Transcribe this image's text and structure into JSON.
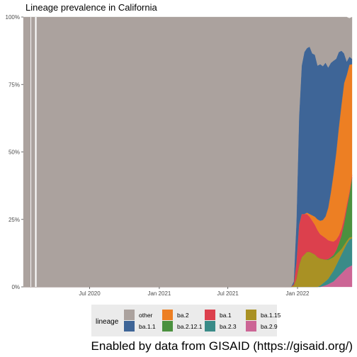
{
  "chart_data": {
    "type": "area",
    "title": "Lineage prevalence in California",
    "xlabel": "",
    "ylabel": "",
    "ylim": [
      0,
      1
    ],
    "xlim": [
      "2020-01-08",
      "2022-05-25"
    ],
    "y_ticks": [
      "0%",
      "25%",
      "50%",
      "75%",
      "100%"
    ],
    "y_tick_values": [
      0,
      0.25,
      0.5,
      0.75,
      1
    ],
    "x_ticks": [
      "Jul 2020",
      "Jan 2021",
      "Jul 2021",
      "Jan 2022"
    ],
    "x_tick_dates": [
      "2020-07-01",
      "2021-01-01",
      "2021-07-01",
      "2022-01-01"
    ],
    "stacking": "cumulative, bottom to top: ba.2.9, ba.2.3, ba.1.15, ba.2.12.1, ba.1, ba.2, ba.1.1, other on top",
    "x": [
      "2021-12-01",
      "2021-12-15",
      "2021-12-22",
      "2021-12-29",
      "2022-01-05",
      "2022-01-12",
      "2022-01-19",
      "2022-01-26",
      "2022-02-02",
      "2022-02-09",
      "2022-02-16",
      "2022-02-23",
      "2022-03-02",
      "2022-03-09",
      "2022-03-16",
      "2022-03-23",
      "2022-03-30",
      "2022-04-06",
      "2022-04-13",
      "2022-04-20",
      "2022-04-27",
      "2022-05-04",
      "2022-05-11",
      "2022-05-18",
      "2022-05-25"
    ],
    "series": [
      {
        "name": "ba.2.9",
        "color": "#cc6595",
        "values": [
          0,
          0,
          0,
          0,
          0,
          0,
          0,
          0,
          0,
          0,
          0,
          0,
          0,
          0.003,
          0.006,
          0.01,
          0.015,
          0.02,
          0.03,
          0.04,
          0.05,
          0.06,
          0.07,
          0.075,
          0.08
        ]
      },
      {
        "name": "ba.2.3",
        "color": "#3a8b88",
        "values": [
          0,
          0,
          0,
          0,
          0,
          0,
          0,
          0,
          0,
          0,
          0,
          0,
          0.005,
          0.01,
          0.015,
          0.02,
          0.03,
          0.04,
          0.05,
          0.06,
          0.07,
          0.08,
          0.09,
          0.1,
          0.1
        ]
      },
      {
        "name": "ba.1.15",
        "color": "#a99124",
        "values": [
          0,
          0,
          0.005,
          0.03,
          0.08,
          0.11,
          0.12,
          0.13,
          0.13,
          0.125,
          0.12,
          0.11,
          0.1,
          0.09,
          0.08,
          0.07,
          0.06,
          0.05,
          0.04,
          0.03,
          0.02,
          0.015,
          0.01,
          0.008,
          0.005
        ]
      },
      {
        "name": "ba.2.12.1",
        "color": "#4b913f",
        "values": [
          0,
          0,
          0,
          0,
          0,
          0,
          0,
          0,
          0,
          0,
          0,
          0,
          0,
          0,
          0,
          0.003,
          0.005,
          0.008,
          0.015,
          0.03,
          0.05,
          0.08,
          0.12,
          0.16,
          0.22
        ]
      },
      {
        "name": "ba.1",
        "color": "#dc404d",
        "values": [
          0,
          0,
          0.005,
          0.06,
          0.15,
          0.16,
          0.15,
          0.14,
          0.13,
          0.12,
          0.11,
          0.1,
          0.09,
          0.085,
          0.08,
          0.07,
          0.06,
          0.05,
          0.04,
          0.03,
          0.025,
          0.02,
          0.015,
          0.01,
          0.01
        ]
      },
      {
        "name": "ba.2",
        "color": "#ed7f23",
        "values": [
          0,
          0,
          0,
          0,
          0,
          0,
          0,
          0.005,
          0.01,
          0.02,
          0.03,
          0.04,
          0.05,
          0.06,
          0.08,
          0.12,
          0.18,
          0.25,
          0.32,
          0.4,
          0.46,
          0.5,
          0.48,
          0.47,
          0.41
        ]
      },
      {
        "name": "ba.1.1",
        "color": "#3e6597",
        "values": [
          0,
          0,
          0.01,
          0.15,
          0.4,
          0.55,
          0.6,
          0.61,
          0.62,
          0.6,
          0.6,
          0.57,
          0.58,
          0.57,
          0.57,
          0.52,
          0.48,
          0.42,
          0.35,
          0.28,
          0.2,
          0.11,
          0.05,
          0.03,
          0.02
        ]
      },
      {
        "name": "other",
        "color": "#aba29e",
        "values": [
          1,
          1,
          0.98,
          0.76,
          0.37,
          0.18,
          0.13,
          0.115,
          0.11,
          0.135,
          0.14,
          0.18,
          0.175,
          0.182,
          0.169,
          0.187,
          0.17,
          0.162,
          0.155,
          0.13,
          0.125,
          0.135,
          0.165,
          0.142,
          0.155
        ]
      }
    ],
    "legend": {
      "title": "lineage",
      "placement": "bottom",
      "columns": [
        [
          "other",
          "ba.1.1"
        ],
        [
          "ba.2",
          "ba.2.12.1"
        ],
        [
          "ba.1",
          "ba.2.3"
        ],
        [
          "ba.1.15",
          "ba.2.9"
        ]
      ]
    },
    "grid": true,
    "panel_color": "#ebebeb"
  },
  "caption": "Enabled by data from GISAID (https://gisaid.org/)"
}
